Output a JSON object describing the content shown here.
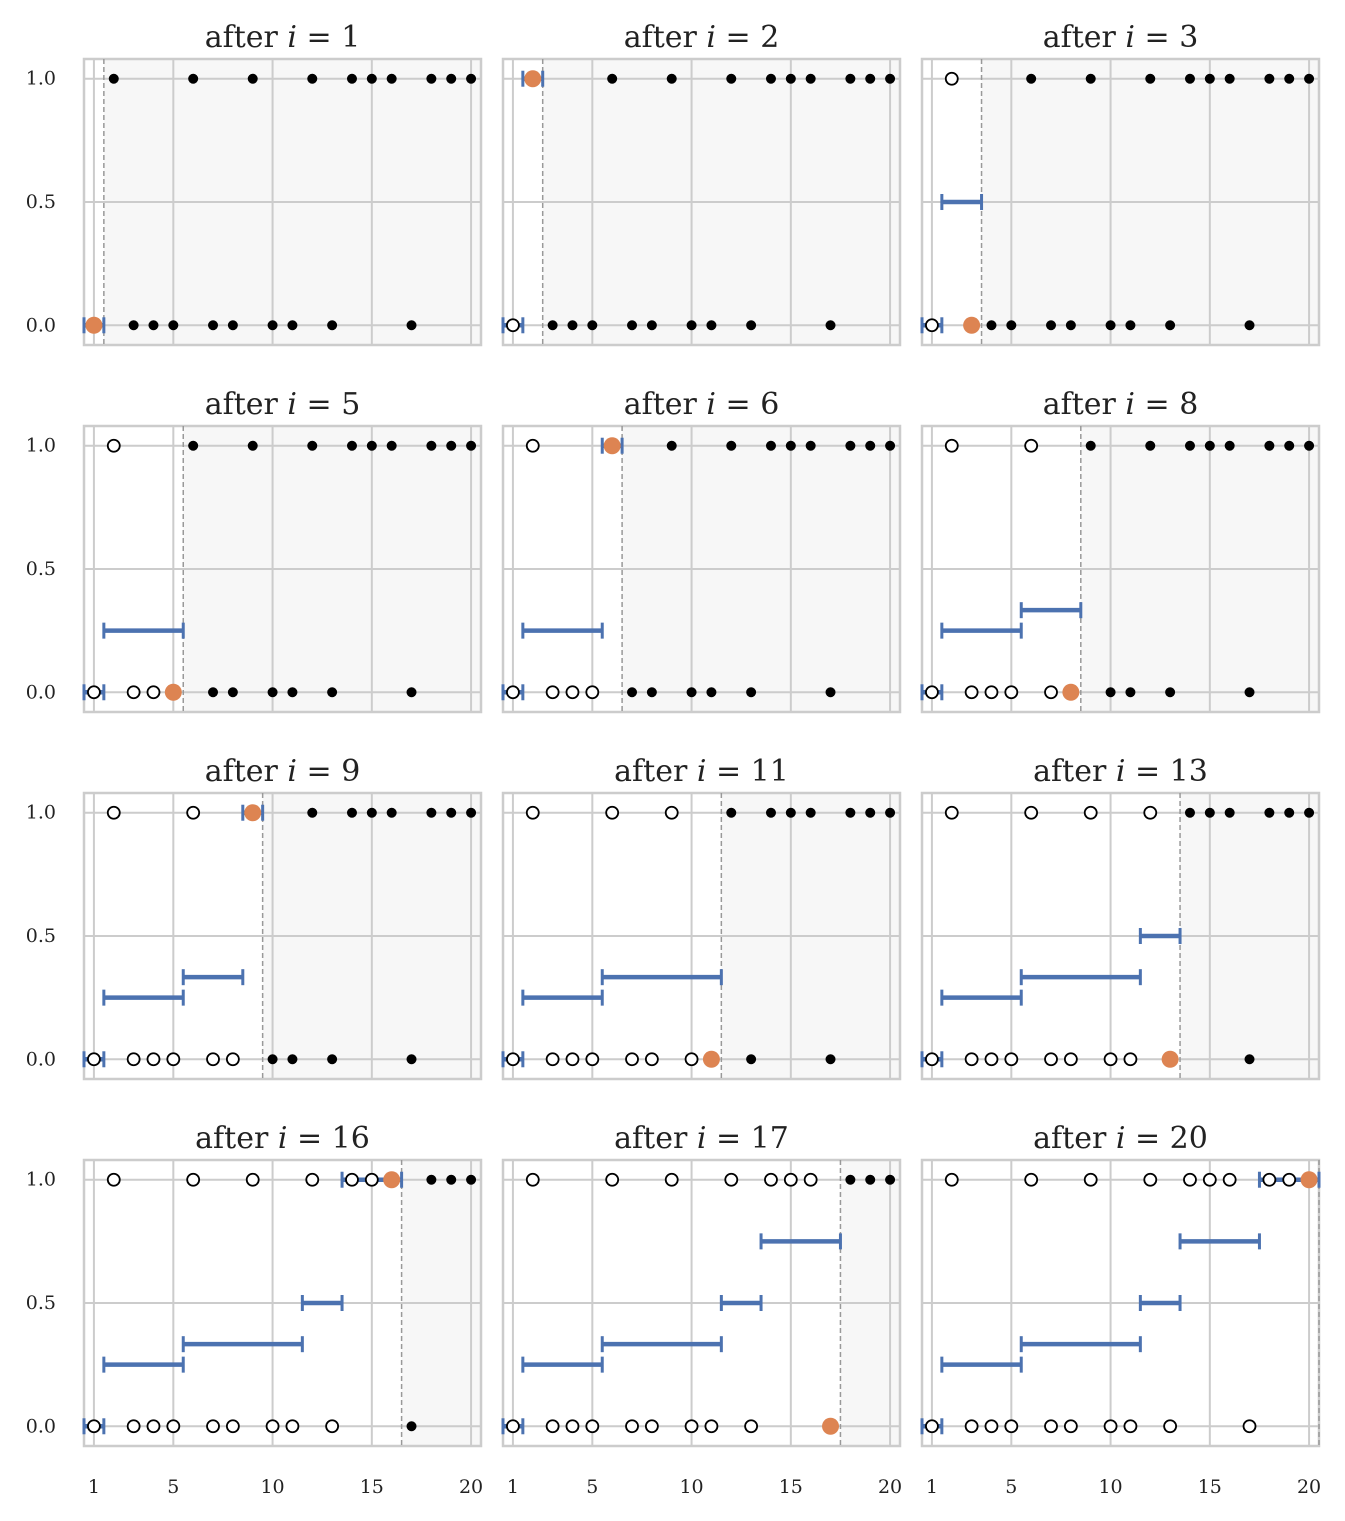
{
  "chart_data": {
    "type": "scatter",
    "xlim": [
      0.5,
      20.5
    ],
    "ylim": [
      -0.08,
      1.08
    ],
    "x_ticks": [
      "1",
      "5",
      "10",
      "15",
      "20"
    ],
    "y_ticks": [
      "0.0",
      "0.5",
      "1.0"
    ],
    "grid": true,
    "title_prefix": "after",
    "title_var": "i",
    "points": [
      {
        "x": 1,
        "y": 0
      },
      {
        "x": 2,
        "y": 1
      },
      {
        "x": 3,
        "y": 0
      },
      {
        "x": 4,
        "y": 0
      },
      {
        "x": 5,
        "y": 0
      },
      {
        "x": 6,
        "y": 1
      },
      {
        "x": 7,
        "y": 0
      },
      {
        "x": 8,
        "y": 0
      },
      {
        "x": 9,
        "y": 1
      },
      {
        "x": 10,
        "y": 0
      },
      {
        "x": 11,
        "y": 0
      },
      {
        "x": 12,
        "y": 1
      },
      {
        "x": 13,
        "y": 0
      },
      {
        "x": 14,
        "y": 1
      },
      {
        "x": 15,
        "y": 1
      },
      {
        "x": 16,
        "y": 1
      },
      {
        "x": 17,
        "y": 0
      },
      {
        "x": 18,
        "y": 1
      },
      {
        "x": 19,
        "y": 1
      },
      {
        "x": 20,
        "y": 1
      }
    ],
    "colors": {
      "segment": "#4c72b0",
      "current_point": "#dd8452",
      "unprocessed_point": "#000000",
      "shade": "#f7f7f7",
      "grid": "#cccccc",
      "boundary": "#999999"
    },
    "panels": [
      {
        "i": 1,
        "title": "after i = 1",
        "boundary": 1.5,
        "segments": [
          {
            "x0": 0.5,
            "x1": 1.5,
            "y": 0
          }
        ]
      },
      {
        "i": 2,
        "title": "after i = 2",
        "boundary": 2.5,
        "segments": [
          {
            "x0": 0.5,
            "x1": 1.5,
            "y": 0
          },
          {
            "x0": 1.5,
            "x1": 2.5,
            "y": 1
          }
        ]
      },
      {
        "i": 3,
        "title": "after i = 3",
        "boundary": 3.5,
        "segments": [
          {
            "x0": 0.5,
            "x1": 1.5,
            "y": 0
          },
          {
            "x0": 1.5,
            "x1": 3.5,
            "y": 0.5
          }
        ]
      },
      {
        "i": 5,
        "title": "after i = 5",
        "boundary": 5.5,
        "segments": [
          {
            "x0": 0.5,
            "x1": 1.5,
            "y": 0
          },
          {
            "x0": 1.5,
            "x1": 5.5,
            "y": 0.25
          }
        ]
      },
      {
        "i": 6,
        "title": "after i = 6",
        "boundary": 6.5,
        "segments": [
          {
            "x0": 0.5,
            "x1": 1.5,
            "y": 0
          },
          {
            "x0": 1.5,
            "x1": 5.5,
            "y": 0.25
          },
          {
            "x0": 5.5,
            "x1": 6.5,
            "y": 1
          }
        ]
      },
      {
        "i": 8,
        "title": "after i = 8",
        "boundary": 8.5,
        "segments": [
          {
            "x0": 0.5,
            "x1": 1.5,
            "y": 0
          },
          {
            "x0": 1.5,
            "x1": 5.5,
            "y": 0.25
          },
          {
            "x0": 5.5,
            "x1": 8.5,
            "y": 0.333
          }
        ]
      },
      {
        "i": 9,
        "title": "after i = 9",
        "boundary": 9.5,
        "segments": [
          {
            "x0": 0.5,
            "x1": 1.5,
            "y": 0
          },
          {
            "x0": 1.5,
            "x1": 5.5,
            "y": 0.25
          },
          {
            "x0": 5.5,
            "x1": 8.5,
            "y": 0.333
          },
          {
            "x0": 8.5,
            "x1": 9.5,
            "y": 1
          }
        ]
      },
      {
        "i": 11,
        "title": "after i = 11",
        "boundary": 11.5,
        "segments": [
          {
            "x0": 0.5,
            "x1": 1.5,
            "y": 0
          },
          {
            "x0": 1.5,
            "x1": 5.5,
            "y": 0.25
          },
          {
            "x0": 5.5,
            "x1": 11.5,
            "y": 0.333
          }
        ]
      },
      {
        "i": 13,
        "title": "after i = 13",
        "boundary": 13.5,
        "segments": [
          {
            "x0": 0.5,
            "x1": 1.5,
            "y": 0
          },
          {
            "x0": 1.5,
            "x1": 5.5,
            "y": 0.25
          },
          {
            "x0": 5.5,
            "x1": 11.5,
            "y": 0.333
          },
          {
            "x0": 11.5,
            "x1": 13.5,
            "y": 0.5
          }
        ]
      },
      {
        "i": 16,
        "title": "after i = 16",
        "boundary": 16.5,
        "segments": [
          {
            "x0": 0.5,
            "x1": 1.5,
            "y": 0
          },
          {
            "x0": 1.5,
            "x1": 5.5,
            "y": 0.25
          },
          {
            "x0": 5.5,
            "x1": 11.5,
            "y": 0.333
          },
          {
            "x0": 11.5,
            "x1": 13.5,
            "y": 0.5
          },
          {
            "x0": 13.5,
            "x1": 16.5,
            "y": 1
          }
        ]
      },
      {
        "i": 17,
        "title": "after i = 17",
        "boundary": 17.5,
        "segments": [
          {
            "x0": 0.5,
            "x1": 1.5,
            "y": 0
          },
          {
            "x0": 1.5,
            "x1": 5.5,
            "y": 0.25
          },
          {
            "x0": 5.5,
            "x1": 11.5,
            "y": 0.333
          },
          {
            "x0": 11.5,
            "x1": 13.5,
            "y": 0.5
          },
          {
            "x0": 13.5,
            "x1": 17.5,
            "y": 0.75
          }
        ]
      },
      {
        "i": 20,
        "title": "after i = 20",
        "boundary": 20.5,
        "segments": [
          {
            "x0": 0.5,
            "x1": 1.5,
            "y": 0
          },
          {
            "x0": 1.5,
            "x1": 5.5,
            "y": 0.25
          },
          {
            "x0": 5.5,
            "x1": 11.5,
            "y": 0.333
          },
          {
            "x0": 11.5,
            "x1": 13.5,
            "y": 0.5
          },
          {
            "x0": 13.5,
            "x1": 17.5,
            "y": 0.75
          },
          {
            "x0": 17.5,
            "x1": 20.5,
            "y": 1
          }
        ]
      }
    ]
  }
}
